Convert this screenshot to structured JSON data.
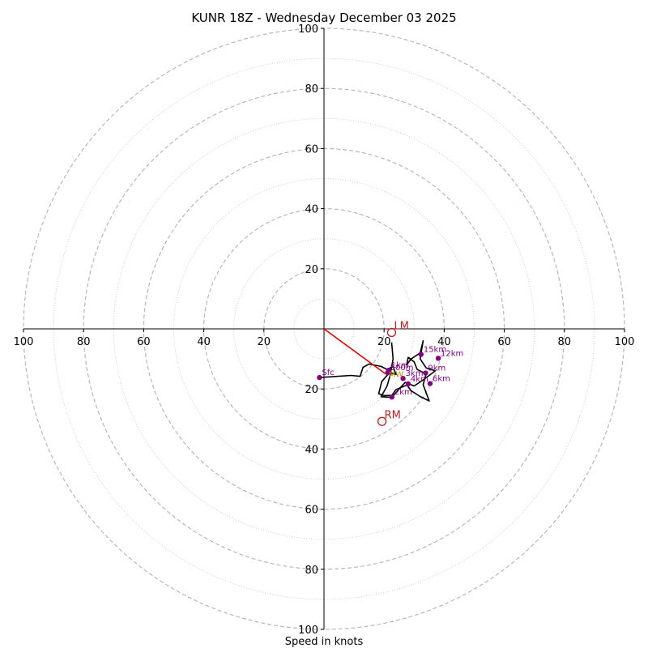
{
  "chart_data": {
    "type": "scatter",
    "title": "KUNR 18Z - Wednesday December 03 2025",
    "xlabel": "Speed in knots",
    "ylabel": "",
    "xlim": [
      -100,
      100
    ],
    "ylim": [
      -100,
      100
    ],
    "rings_major": [
      20,
      40,
      60,
      80,
      100
    ],
    "rings_minor": [
      10,
      30,
      50,
      70,
      90
    ],
    "grid": true,
    "x_ticks": [
      {
        "value": -100,
        "label": "100"
      },
      {
        "value": -80,
        "label": "80"
      },
      {
        "value": -60,
        "label": "60"
      },
      {
        "value": -40,
        "label": "40"
      },
      {
        "value": -20,
        "label": "20"
      },
      {
        "value": 20,
        "label": "20"
      },
      {
        "value": 40,
        "label": "40"
      },
      {
        "value": 60,
        "label": "60"
      },
      {
        "value": 80,
        "label": "80"
      },
      {
        "value": 100,
        "label": "100"
      }
    ],
    "y_ticks": [
      {
        "value": 100,
        "label": "100"
      },
      {
        "value": 80,
        "label": "80"
      },
      {
        "value": 60,
        "label": "60"
      },
      {
        "value": 40,
        "label": "40"
      },
      {
        "value": 20,
        "label": "20"
      },
      {
        "value": -20,
        "label": "20"
      },
      {
        "value": -40,
        "label": "40"
      },
      {
        "value": -60,
        "label": "60"
      },
      {
        "value": -80,
        "label": "80"
      },
      {
        "value": -100,
        "label": "100"
      }
    ],
    "hodograph_trace": {
      "name": "hodograph",
      "color": "#000000",
      "points": [
        [
          -1.5,
          -16.2
        ],
        [
          9,
          -15.5
        ],
        [
          12,
          -15.8
        ],
        [
          13,
          -12.8
        ],
        [
          15,
          -11.7
        ],
        [
          19,
          -12.5
        ],
        [
          21,
          -13.5
        ],
        [
          23,
          -12.5
        ],
        [
          24,
          -15.2
        ],
        [
          21.8,
          -14.5
        ],
        [
          19.2,
          -17.6
        ],
        [
          18.2,
          -21.6
        ],
        [
          20,
          -22.2
        ],
        [
          22.6,
          -22.1
        ],
        [
          24,
          -20.2
        ],
        [
          27.6,
          -18.7
        ],
        [
          29,
          -20.6
        ],
        [
          32,
          -22.5
        ],
        [
          35,
          -24
        ],
        [
          33,
          -18.6
        ],
        [
          34,
          -15
        ],
        [
          31,
          -13.5
        ],
        [
          30,
          -11
        ],
        [
          28,
          -9.5
        ],
        [
          27.5,
          -12
        ],
        [
          29,
          -10
        ],
        [
          32,
          -8
        ],
        [
          33,
          -4
        ],
        [
          32,
          -10
        ],
        [
          34,
          -13
        ],
        [
          37,
          -14
        ],
        [
          33,
          -17
        ],
        [
          30,
          -19
        ],
        [
          27,
          -17.8
        ],
        [
          25,
          -20
        ],
        [
          22.6,
          -22.8
        ],
        [
          19,
          -22.6
        ],
        [
          21,
          -19
        ],
        [
          22,
          -15.5
        ],
        [
          23,
          -10
        ],
        [
          22.5,
          -4.5
        ]
      ]
    },
    "storm_motion_vector": {
      "color": "#e00000",
      "points": [
        [
          0,
          0
        ],
        [
          20.5,
          -15
        ]
      ]
    },
    "height_markers": [
      {
        "label": "Sfc",
        "u": -1.5,
        "v": -16.2
      },
      {
        "label": "1km",
        "u": 21.5,
        "v": -13.8
      },
      {
        "label": "500m",
        "u": 21.2,
        "v": -14.6
      },
      {
        "label": "2km",
        "u": 22.6,
        "v": -22.7
      },
      {
        "label": "3km",
        "u": 26.3,
        "v": -16.5
      },
      {
        "label": "4km",
        "u": 28,
        "v": -18.3
      },
      {
        "label": "6km",
        "u": 35.3,
        "v": -18.2
      },
      {
        "label": "9km",
        "u": 33.8,
        "v": -14.7
      },
      {
        "label": "12km",
        "u": 38,
        "v": -9.8
      },
      {
        "label": "15km",
        "u": 32.3,
        "v": -8.5
      }
    ],
    "marker_color": "#800080",
    "storm_motions": [
      {
        "label": "LM",
        "u": 22.5,
        "v": -1.2
      },
      {
        "label": "RM",
        "u": 19.3,
        "v": -30.8
      }
    ],
    "storm_motion_color": "#b22222",
    "mean_wind": {
      "label": "MW",
      "u": 20.7,
      "v": -15.5,
      "color": "#b8860b"
    }
  }
}
